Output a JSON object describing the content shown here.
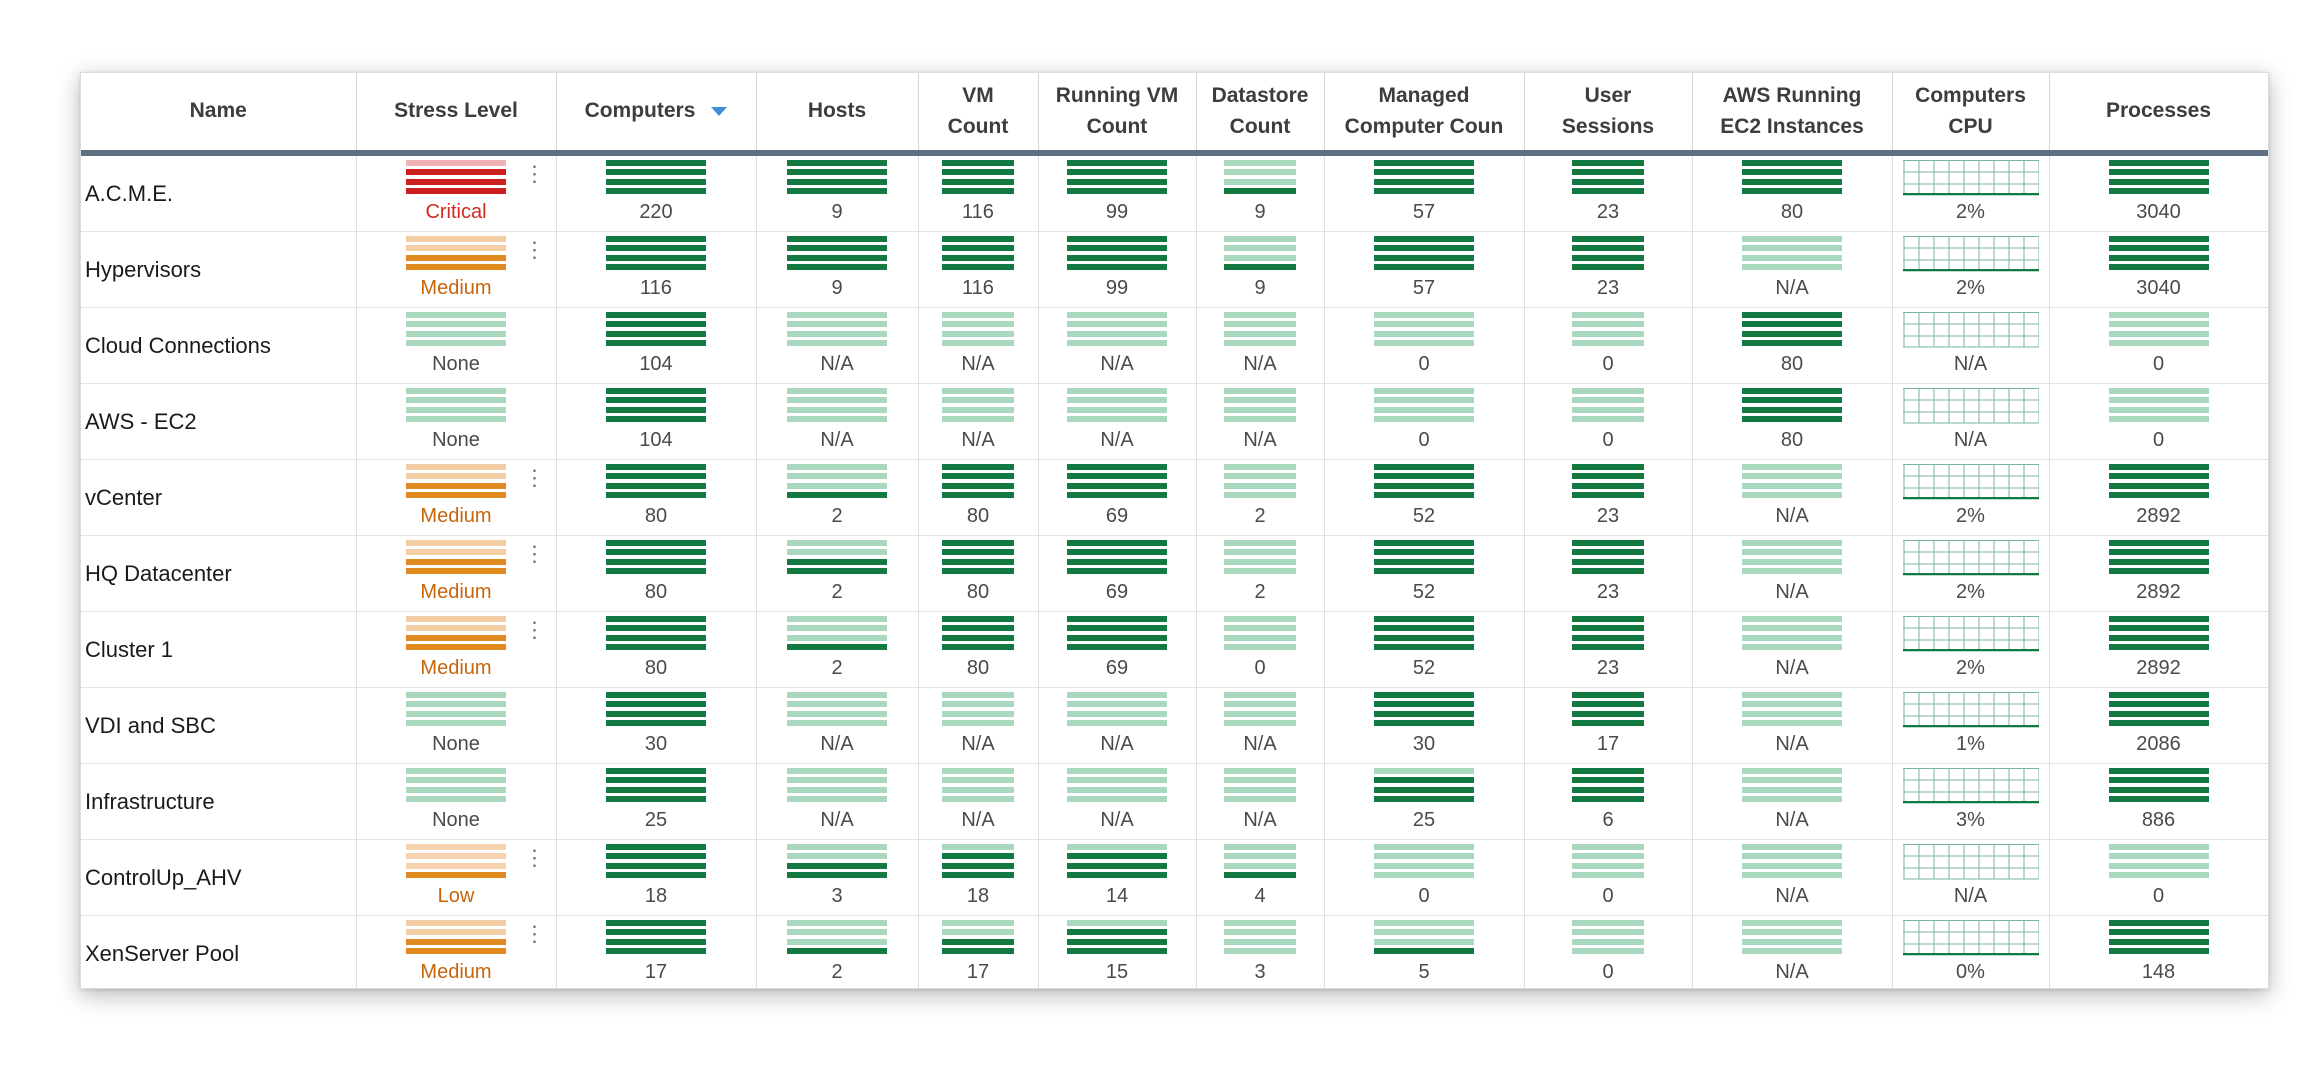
{
  "columns": [
    {
      "label": "Name"
    },
    {
      "label": "Stress Level"
    },
    {
      "label": "Computers",
      "sorted": "descending"
    },
    {
      "label": "Hosts"
    },
    {
      "label": "VM\nCount"
    },
    {
      "label": "Running VM\nCount"
    },
    {
      "label": "Datastore\nCount"
    },
    {
      "label": "Managed\nComputer Coun"
    },
    {
      "label": "User\nSessions"
    },
    {
      "label": "AWS Running\nEC2 Instances"
    },
    {
      "label": "Computers\nCPU"
    },
    {
      "label": "Processes"
    }
  ],
  "colors": {
    "dark_green": "#127a40",
    "light_green": "#a9d8bf",
    "critical_red": "#cc1f1f",
    "critical_pink": "#f1b2b2",
    "medium_orange": "#e0891e",
    "medium_peach": "#f3cda4",
    "low_peach": "#f6d2ae",
    "cpu_grid": "#79b597",
    "header_rule": "#5f6f82",
    "sort_arrow": "#3e8fd3"
  },
  "rows": [
    {
      "name": "A.C.M.E.",
      "stress": {
        "label": "Critical",
        "level": "critical",
        "menu": true
      },
      "computers": "220",
      "computers_bars": 4,
      "hosts": "9",
      "hosts_bars": 4,
      "vm_count": "116",
      "vm_bars": 4,
      "running_vm": "99",
      "running_bars": 4,
      "datastore": "9",
      "datastore_bars": 1,
      "managed": "57",
      "managed_bars": 4,
      "sessions": "23",
      "sessions_bars": 4,
      "aws": "80",
      "aws_bars": 4,
      "cpu": "2%",
      "cpu_active": true,
      "processes": "3040",
      "processes_bars": 4
    },
    {
      "name": "Hypervisors",
      "stress": {
        "label": "Medium",
        "level": "medium",
        "menu": true
      },
      "computers": "116",
      "computers_bars": 4,
      "hosts": "9",
      "hosts_bars": 4,
      "vm_count": "116",
      "vm_bars": 4,
      "running_vm": "99",
      "running_bars": 4,
      "datastore": "9",
      "datastore_bars": 1,
      "managed": "57",
      "managed_bars": 4,
      "sessions": "23",
      "sessions_bars": 4,
      "aws": "N/A",
      "aws_bars": 0,
      "cpu": "2%",
      "cpu_active": true,
      "processes": "3040",
      "processes_bars": 4
    },
    {
      "name": "Cloud Connections",
      "stress": {
        "label": "None",
        "level": "none",
        "menu": false
      },
      "computers": "104",
      "computers_bars": 4,
      "hosts": "N/A",
      "hosts_bars": 0,
      "vm_count": "N/A",
      "vm_bars": 0,
      "running_vm": "N/A",
      "running_bars": 0,
      "datastore": "N/A",
      "datastore_bars": 0,
      "managed": "0",
      "managed_bars": 0,
      "sessions": "0",
      "sessions_bars": 0,
      "aws": "80",
      "aws_bars": 4,
      "cpu": "N/A",
      "cpu_active": false,
      "processes": "0",
      "processes_bars": 0
    },
    {
      "name": "AWS - EC2",
      "stress": {
        "label": "None",
        "level": "none",
        "menu": false
      },
      "computers": "104",
      "computers_bars": 4,
      "hosts": "N/A",
      "hosts_bars": 0,
      "vm_count": "N/A",
      "vm_bars": 0,
      "running_vm": "N/A",
      "running_bars": 0,
      "datastore": "N/A",
      "datastore_bars": 0,
      "managed": "0",
      "managed_bars": 0,
      "sessions": "0",
      "sessions_bars": 0,
      "aws": "80",
      "aws_bars": 4,
      "cpu": "N/A",
      "cpu_active": false,
      "processes": "0",
      "processes_bars": 0
    },
    {
      "name": "vCenter",
      "stress": {
        "label": "Medium",
        "level": "medium",
        "menu": true
      },
      "computers": "80",
      "computers_bars": 4,
      "hosts": "2",
      "hosts_bars": 1,
      "vm_count": "80",
      "vm_bars": 4,
      "running_vm": "69",
      "running_bars": 4,
      "datastore": "2",
      "datastore_bars": 0,
      "managed": "52",
      "managed_bars": 4,
      "sessions": "23",
      "sessions_bars": 4,
      "aws": "N/A",
      "aws_bars": 0,
      "cpu": "2%",
      "cpu_active": true,
      "processes": "2892",
      "processes_bars": 4
    },
    {
      "name": "HQ Datacenter",
      "stress": {
        "label": "Medium",
        "level": "medium",
        "menu": true
      },
      "computers": "80",
      "computers_bars": 4,
      "hosts": "2",
      "hosts_bars": 2,
      "vm_count": "80",
      "vm_bars": 4,
      "running_vm": "69",
      "running_bars": 4,
      "datastore": "2",
      "datastore_bars": 0,
      "managed": "52",
      "managed_bars": 4,
      "sessions": "23",
      "sessions_bars": 4,
      "aws": "N/A",
      "aws_bars": 0,
      "cpu": "2%",
      "cpu_active": true,
      "processes": "2892",
      "processes_bars": 4
    },
    {
      "name": "Cluster 1",
      "stress": {
        "label": "Medium",
        "level": "medium",
        "menu": true
      },
      "computers": "80",
      "computers_bars": 4,
      "hosts": "2",
      "hosts_bars": 1,
      "vm_count": "80",
      "vm_bars": 4,
      "running_vm": "69",
      "running_bars": 4,
      "datastore": "0",
      "datastore_bars": 0,
      "managed": "52",
      "managed_bars": 4,
      "sessions": "23",
      "sessions_bars": 4,
      "aws": "N/A",
      "aws_bars": 0,
      "cpu": "2%",
      "cpu_active": true,
      "processes": "2892",
      "processes_bars": 4
    },
    {
      "name": "VDI and SBC",
      "stress": {
        "label": "None",
        "level": "none",
        "menu": false
      },
      "computers": "30",
      "computers_bars": 4,
      "hosts": "N/A",
      "hosts_bars": 0,
      "vm_count": "N/A",
      "vm_bars": 0,
      "running_vm": "N/A",
      "running_bars": 0,
      "datastore": "N/A",
      "datastore_bars": 0,
      "managed": "30",
      "managed_bars": 4,
      "sessions": "17",
      "sessions_bars": 4,
      "aws": "N/A",
      "aws_bars": 0,
      "cpu": "1%",
      "cpu_active": true,
      "processes": "2086",
      "processes_bars": 4
    },
    {
      "name": "Infrastructure",
      "stress": {
        "label": "None",
        "level": "none",
        "menu": false
      },
      "computers": "25",
      "computers_bars": 4,
      "hosts": "N/A",
      "hosts_bars": 0,
      "vm_count": "N/A",
      "vm_bars": 0,
      "running_vm": "N/A",
      "running_bars": 0,
      "datastore": "N/A",
      "datastore_bars": 0,
      "managed": "25",
      "managed_bars": 3,
      "sessions": "6",
      "sessions_bars": 4,
      "aws": "N/A",
      "aws_bars": 0,
      "cpu": "3%",
      "cpu_active": true,
      "processes": "886",
      "processes_bars": 4
    },
    {
      "name": "ControlUp_AHV",
      "stress": {
        "label": "Low",
        "level": "low",
        "menu": true
      },
      "computers": "18",
      "computers_bars": 4,
      "hosts": "3",
      "hosts_bars": 2,
      "vm_count": "18",
      "vm_bars": 3,
      "running_vm": "14",
      "running_bars": 3,
      "datastore": "4",
      "datastore_bars": 1,
      "managed": "0",
      "managed_bars": 0,
      "sessions": "0",
      "sessions_bars": 0,
      "aws": "N/A",
      "aws_bars": 0,
      "cpu": "N/A",
      "cpu_active": false,
      "processes": "0",
      "processes_bars": 0
    },
    {
      "name": "XenServer Pool",
      "stress": {
        "label": "Medium",
        "level": "medium",
        "menu": true
      },
      "computers": "17",
      "computers_bars": 4,
      "hosts": "2",
      "hosts_bars": 1,
      "vm_count": "17",
      "vm_bars": 2,
      "running_vm": "15",
      "running_bars": 3,
      "datastore": "3",
      "datastore_bars": 0,
      "managed": "5",
      "managed_bars": 1,
      "sessions": "0",
      "sessions_bars": 0,
      "aws": "N/A",
      "aws_bars": 0,
      "cpu": "0%",
      "cpu_active": true,
      "processes": "148",
      "processes_bars": 4
    }
  ]
}
